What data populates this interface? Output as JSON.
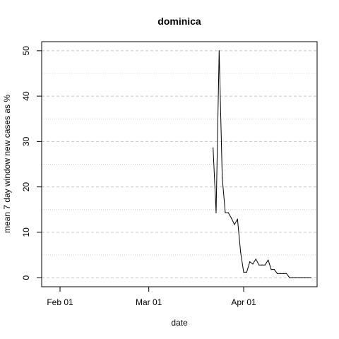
{
  "chart_data": {
    "type": "line",
    "title": "dominica",
    "xlabel": "date",
    "ylabel": "mean  7  day window new cases as %",
    "x_axis": {
      "type": "date",
      "range": [
        "2020-01-26",
        "2020-04-25"
      ],
      "ticks": [
        {
          "date": "2020-02-01",
          "label": "Feb 01"
        },
        {
          "date": "2020-03-01",
          "label": "Mar 01"
        },
        {
          "date": "2020-04-01",
          "label": "Apr 01"
        }
      ]
    },
    "y_axis": {
      "range": [
        -2,
        52
      ],
      "ticks": [
        0,
        10,
        20,
        30,
        40,
        50
      ],
      "major_grid": [
        0,
        10,
        20,
        30,
        40,
        50
      ],
      "minor_grid": [
        5,
        15,
        25,
        35,
        45
      ]
    },
    "grid": true,
    "series": [
      {
        "color": "#000000",
        "points": [
          {
            "x": "2020-03-22",
            "y": 28.6
          },
          {
            "x": "2020-03-23",
            "y": 14.3
          },
          {
            "x": "2020-03-24",
            "y": 50.0
          },
          {
            "x": "2020-03-25",
            "y": 22.0
          },
          {
            "x": "2020-03-26",
            "y": 14.3
          },
          {
            "x": "2020-03-27",
            "y": 14.3
          },
          {
            "x": "2020-03-28",
            "y": 13.1
          },
          {
            "x": "2020-03-29",
            "y": 11.7
          },
          {
            "x": "2020-03-30",
            "y": 12.9
          },
          {
            "x": "2020-03-31",
            "y": 5.6
          },
          {
            "x": "2020-04-01",
            "y": 1.2
          },
          {
            "x": "2020-04-02",
            "y": 1.2
          },
          {
            "x": "2020-04-03",
            "y": 3.5
          },
          {
            "x": "2020-04-04",
            "y": 3.0
          },
          {
            "x": "2020-04-05",
            "y": 4.1
          },
          {
            "x": "2020-04-06",
            "y": 2.8
          },
          {
            "x": "2020-04-07",
            "y": 2.8
          },
          {
            "x": "2020-04-08",
            "y": 2.8
          },
          {
            "x": "2020-04-09",
            "y": 3.9
          },
          {
            "x": "2020-04-10",
            "y": 1.8
          },
          {
            "x": "2020-04-11",
            "y": 1.8
          },
          {
            "x": "2020-04-12",
            "y": 0.9
          },
          {
            "x": "2020-04-13",
            "y": 0.9
          },
          {
            "x": "2020-04-14",
            "y": 0.9
          },
          {
            "x": "2020-04-15",
            "y": 0.9
          },
          {
            "x": "2020-04-16",
            "y": 0.0
          },
          {
            "x": "2020-04-17",
            "y": 0.0
          },
          {
            "x": "2020-04-18",
            "y": 0.0
          },
          {
            "x": "2020-04-19",
            "y": 0.0
          },
          {
            "x": "2020-04-20",
            "y": 0.0
          },
          {
            "x": "2020-04-21",
            "y": 0.0
          },
          {
            "x": "2020-04-22",
            "y": 0.0
          },
          {
            "x": "2020-04-23",
            "y": 0.0
          }
        ]
      }
    ]
  }
}
